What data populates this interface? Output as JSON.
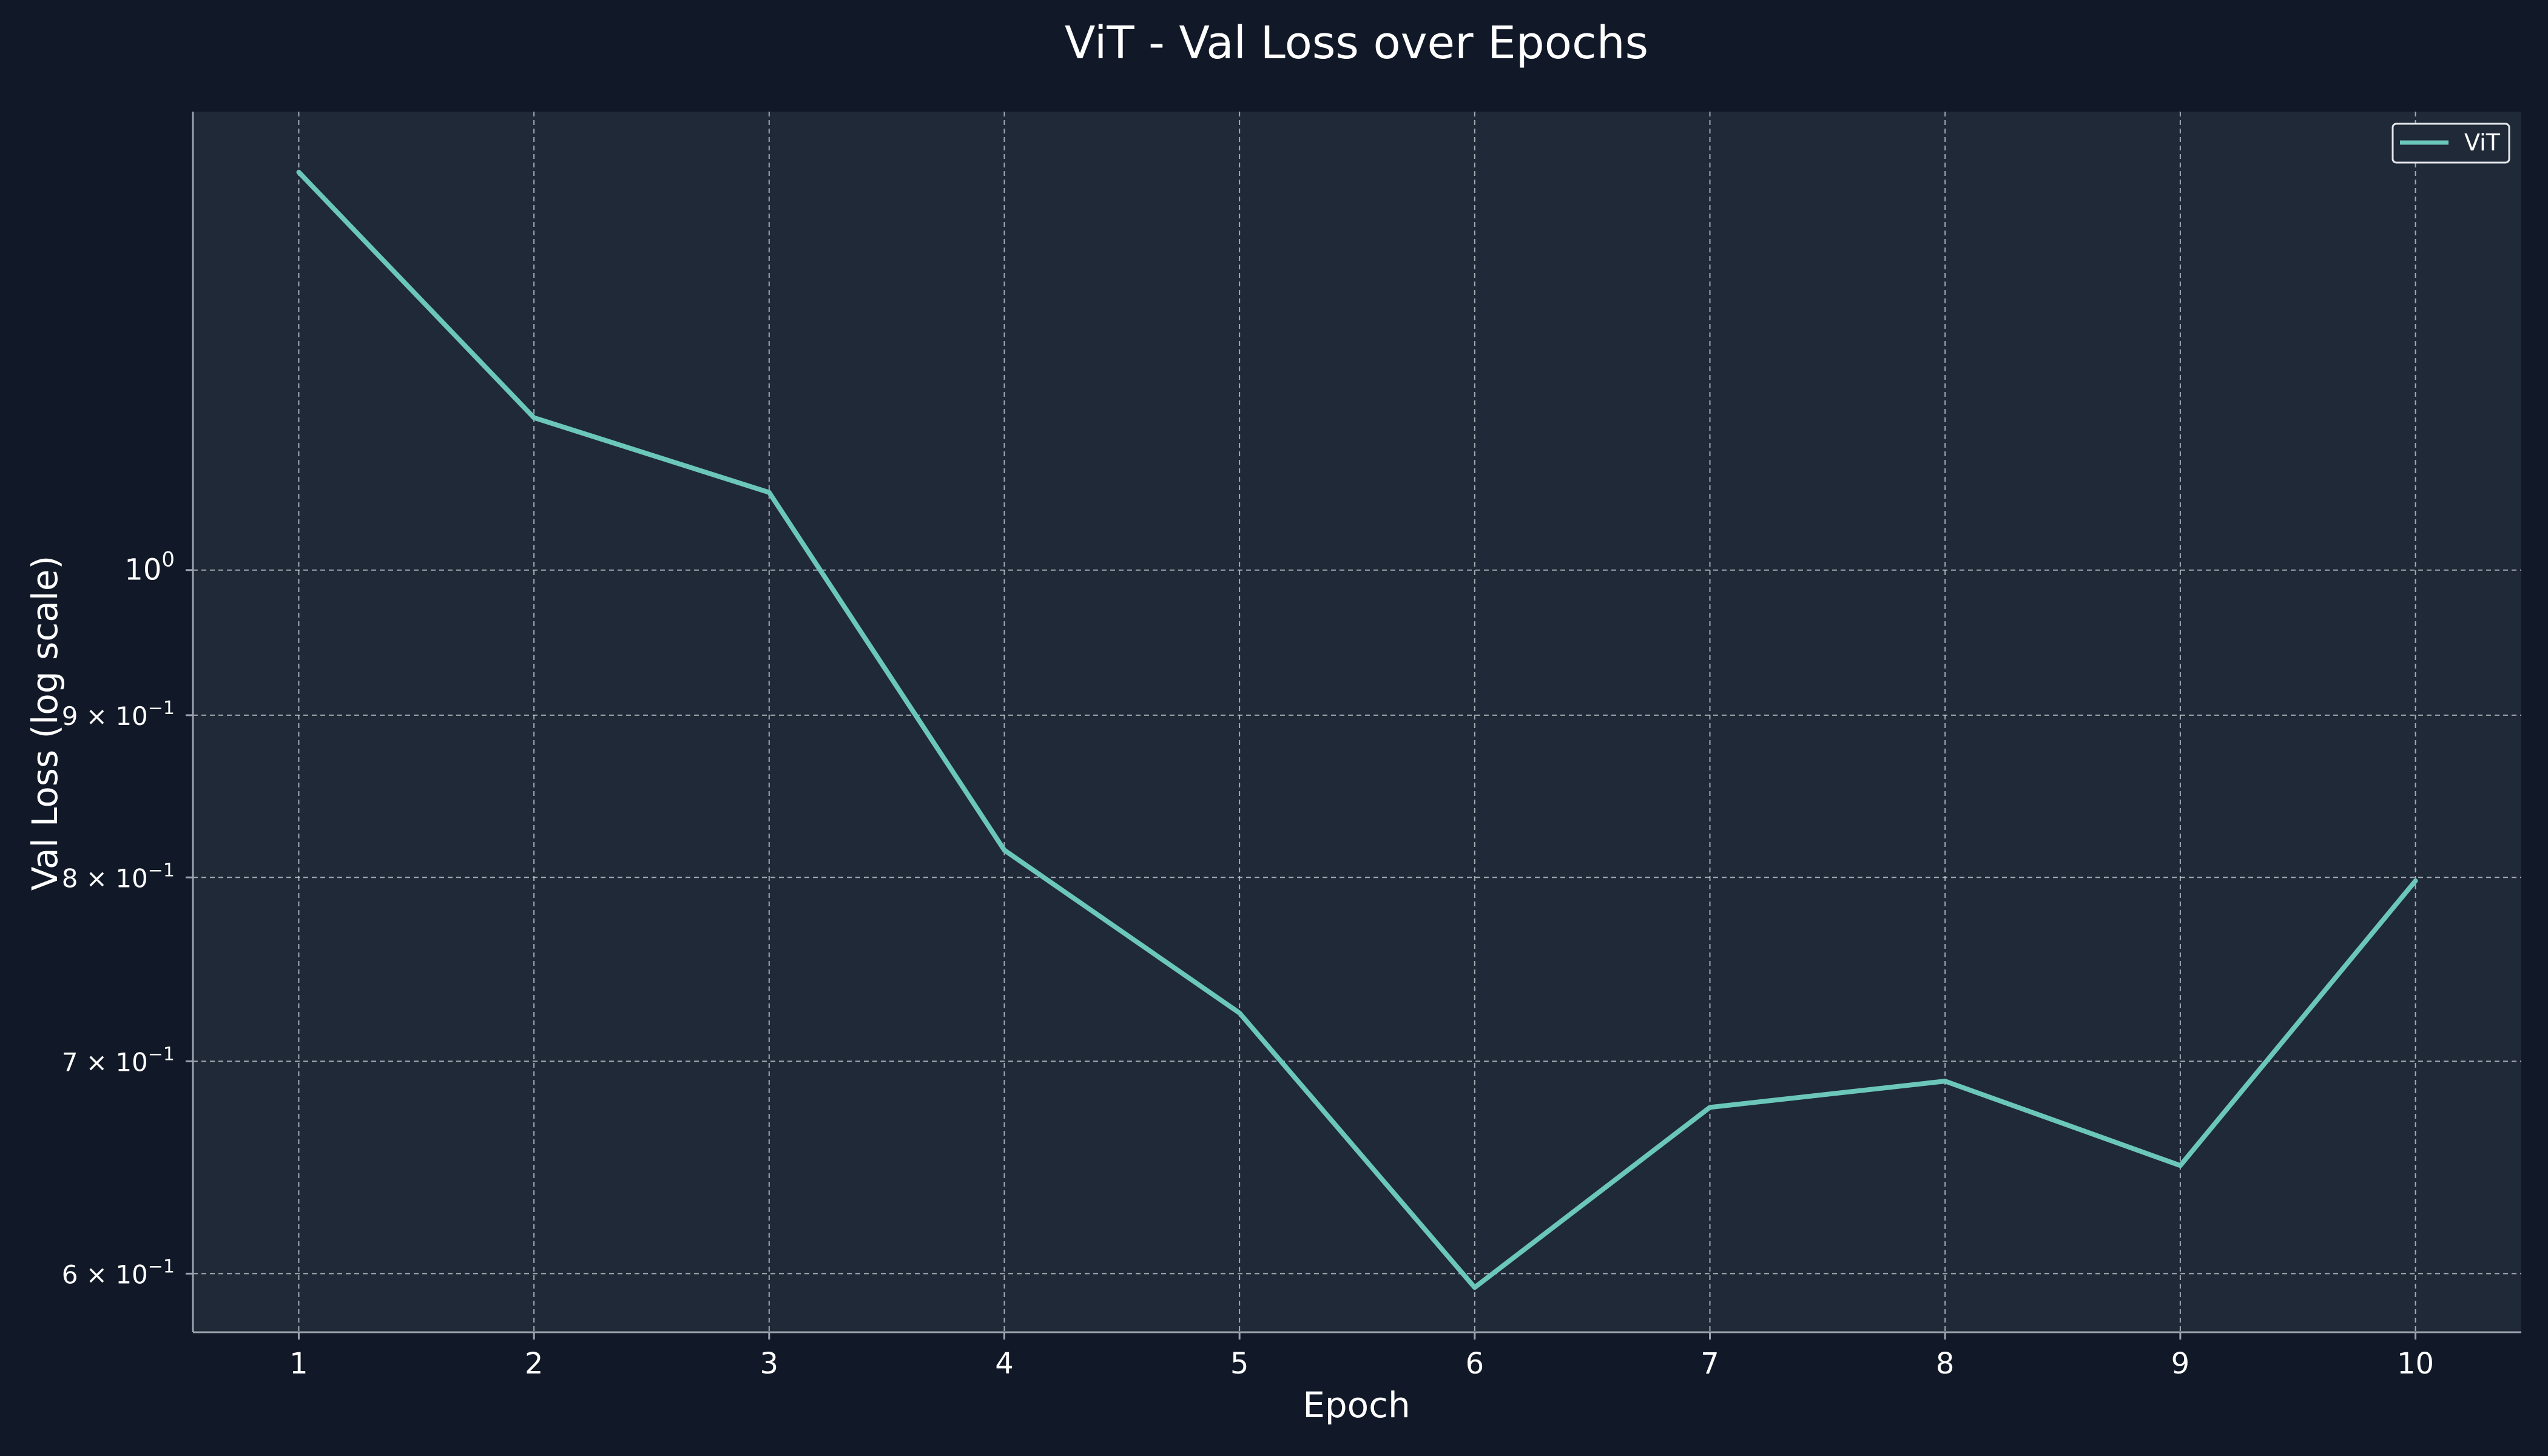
{
  "chart_data": {
    "type": "line",
    "title": "ViT - Val Loss over Epochs",
    "xlabel": "Epoch",
    "ylabel": "Val Loss (log scale)",
    "yscale": "log",
    "x": [
      1,
      2,
      3,
      4,
      5,
      6,
      7,
      8,
      9,
      10
    ],
    "series": [
      {
        "name": "ViT",
        "color": "#6cc7bb",
        "values": [
          1.335,
          1.117,
          1.058,
          0.816,
          0.725,
          0.594,
          0.677,
          0.69,
          0.649,
          0.798
        ]
      }
    ],
    "xlim": [
      0.55,
      10.45
    ],
    "ylim": [
      0.575,
      1.395
    ],
    "x_ticks": [
      "1",
      "2",
      "3",
      "4",
      "5",
      "6",
      "7",
      "8",
      "9",
      "10"
    ],
    "y_ticks": [
      {
        "value": 1.0,
        "base": "10",
        "exp": "0"
      },
      {
        "value": 0.9,
        "base": "9 × 10",
        "exp": "−1"
      },
      {
        "value": 0.8,
        "base": "8 × 10",
        "exp": "−1"
      },
      {
        "value": 0.7,
        "base": "7 × 10",
        "exp": "−1"
      },
      {
        "value": 0.6,
        "base": "6 × 10",
        "exp": "−1"
      }
    ],
    "grid": true,
    "legend_position": "top-right",
    "background": "#111827",
    "plot_background": "#1f2937"
  }
}
